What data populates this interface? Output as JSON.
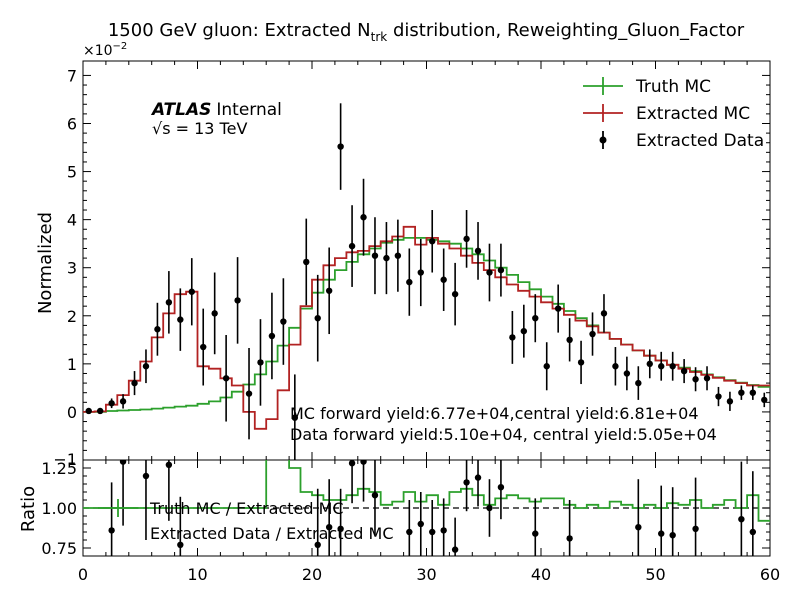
{
  "chart_data": {
    "type": "step-line-with-errorbars",
    "title": "1500 GeV gluon: Extracted N",
    "title_sub": "trk",
    "title_suffix": " distribution, Reweighting_Gluon_Factor",
    "ylabel": "Normalized",
    "ratio_ylabel": "Ratio",
    "y_exponent": "×10",
    "y_exponent_power": "−2",
    "atlas_label": "ATLAS",
    "atlas_sublabel": "Internal",
    "energy_label": "√s = 13 TeV",
    "annotation_mc": "MC forward yield:6.77e+04,central yield:6.81e+04",
    "annotation_data": "Data forward yield:5.10e+04, central yield:5.05e+04",
    "xlim": [
      0,
      60
    ],
    "ylim": [
      -1.0,
      7.3
    ],
    "ratio_ylim": [
      0.7,
      1.3
    ],
    "x_ticks": [
      "0",
      "10",
      "20",
      "30",
      "40",
      "50",
      "60"
    ],
    "y_ticks": [
      "0",
      "1",
      "2",
      "3",
      "4",
      "5",
      "6",
      "7"
    ],
    "y_tick_values": [
      0,
      1,
      2,
      3,
      4,
      5,
      6,
      7
    ],
    "y_tick_extra": "−1",
    "ratio_ticks": [
      "0.75",
      "1.00",
      "1.25"
    ],
    "ratio_tick_values": [
      0.75,
      1.0,
      1.25
    ],
    "legend": [
      {
        "label": "Truth MC",
        "color": "#2ca02c"
      },
      {
        "label": "Extracted MC",
        "color": "#b22222"
      },
      {
        "label": "Extracted Data",
        "color": "#000000"
      }
    ],
    "ratio_legend": [
      {
        "label": "Truth MC / Extracted MC",
        "color": "#2ca02c"
      },
      {
        "label": "Extracted Data / Extracted MC",
        "color": "#000000"
      }
    ],
    "truth_mc": [
      0.0,
      0.0,
      0.02,
      0.03,
      0.04,
      0.05,
      0.07,
      0.09,
      0.11,
      0.13,
      0.17,
      0.22,
      0.3,
      0.42,
      0.57,
      0.78,
      1.05,
      1.38,
      1.75,
      2.15,
      2.48,
      2.75,
      2.95,
      3.12,
      3.28,
      3.4,
      3.52,
      3.58,
      3.62,
      3.62,
      3.58,
      3.55,
      3.5,
      3.4,
      3.28,
      3.15,
      3.0,
      2.85,
      2.7,
      2.55,
      2.4,
      2.25,
      2.1,
      1.95,
      1.8,
      1.65,
      1.52,
      1.4,
      1.28,
      1.17,
      1.07,
      0.98,
      0.92,
      0.85,
      0.78,
      0.72,
      0.66,
      0.61,
      0.56,
      0.52
    ],
    "extracted_mc": [
      0.0,
      0.01,
      0.15,
      0.35,
      0.65,
      1.05,
      1.55,
      2.05,
      2.45,
      2.5,
      0.95,
      0.9,
      0.7,
      0.55,
      0.0,
      -0.35,
      -0.15,
      0.45,
      1.4,
      2.2,
      2.75,
      3.05,
      3.2,
      3.32,
      3.35,
      3.45,
      3.55,
      3.65,
      3.85,
      3.48,
      3.62,
      3.5,
      3.4,
      3.25,
      3.1,
      2.95,
      2.8,
      2.65,
      2.52,
      2.4,
      2.28,
      2.15,
      2.02,
      1.9,
      1.78,
      1.65,
      1.52,
      1.4,
      1.28,
      1.17,
      1.07,
      0.98,
      0.9,
      0.83,
      0.77,
      0.71,
      0.65,
      0.6,
      0.55,
      0.55
    ],
    "data_x": [
      0.5,
      1.5,
      2.5,
      3.5,
      4.5,
      5.5,
      6.5,
      7.5,
      8.5,
      9.5,
      10.5,
      11.5,
      12.5,
      13.5,
      14.5,
      15.5,
      16.5,
      17.5,
      18.5,
      19.5,
      20.5,
      21.5,
      22.5,
      23.5,
      24.5,
      25.5,
      26.5,
      27.5,
      28.5,
      29.5,
      30.5,
      31.5,
      32.5,
      33.5,
      34.5,
      35.5,
      36.5,
      37.5,
      38.5,
      39.5,
      40.5,
      41.5,
      42.5,
      43.5,
      44.5,
      45.5,
      46.5,
      47.5,
      48.5,
      49.5,
      50.5,
      51.5,
      52.5,
      53.5,
      54.5,
      55.5,
      56.5,
      57.5,
      58.5,
      59.5
    ],
    "data_y": [
      0.02,
      0.02,
      0.18,
      0.22,
      0.6,
      0.95,
      1.72,
      2.28,
      1.92,
      2.5,
      1.35,
      2.05,
      0.7,
      2.32,
      0.38,
      1.03,
      1.58,
      1.88,
      -0.12,
      3.12,
      1.95,
      2.52,
      5.52,
      3.45,
      4.05,
      3.25,
      3.2,
      3.25,
      2.7,
      2.9,
      3.55,
      2.75,
      2.45,
      3.6,
      3.35,
      2.9,
      2.95,
      1.55,
      1.68,
      1.95,
      0.95,
      2.15,
      1.5,
      1.03,
      1.62,
      2.05,
      0.95,
      0.8,
      0.6,
      1.0,
      0.95,
      0.95,
      0.85,
      0.68,
      0.7,
      0.32,
      0.22,
      0.4,
      0.4,
      0.25
    ],
    "data_err": [
      0.05,
      0.05,
      0.1,
      0.15,
      0.25,
      0.35,
      0.55,
      0.65,
      0.65,
      0.7,
      0.8,
      0.85,
      0.9,
      0.9,
      0.95,
      0.9,
      0.9,
      0.9,
      0.9,
      0.9,
      0.9,
      0.9,
      0.9,
      0.85,
      0.8,
      0.8,
      0.75,
      0.75,
      0.7,
      0.7,
      0.65,
      0.65,
      0.65,
      0.6,
      0.6,
      0.6,
      0.55,
      0.55,
      0.55,
      0.5,
      0.5,
      0.5,
      0.45,
      0.45,
      0.45,
      0.4,
      0.4,
      0.35,
      0.35,
      0.3,
      0.3,
      0.3,
      0.25,
      0.25,
      0.25,
      0.2,
      0.2,
      0.15,
      0.15,
      0.15
    ],
    "ratio_truth": [
      1.0,
      1.0,
      1.0,
      1.0,
      1.0,
      1.0,
      1.0,
      1.0,
      1.0,
      1.0,
      1.0,
      1.0,
      1.0,
      1.0,
      1.0,
      1.0,
      1.5,
      1.5,
      1.25,
      1.1,
      1.08,
      1.05,
      1.05,
      1.08,
      1.12,
      1.1,
      1.02,
      1.04,
      1.1,
      1.04,
      1.08,
      1.02,
      1.1,
      1.12,
      1.08,
      1.02,
      1.06,
      1.08,
      1.06,
      1.04,
      1.06,
      1.06,
      1.02,
      1.0,
      1.02,
      1.0,
      1.04,
      1.02,
      1.0,
      1.02,
      1.0,
      1.03,
      1.02,
      1.05,
      1.0,
      1.02,
      1.05,
      1.0,
      1.08,
      0.92
    ],
    "ratio_data": [
      null,
      null,
      0.86,
      1.29,
      null,
      1.2,
      null,
      1.27,
      0.77,
      null,
      null,
      null,
      null,
      null,
      null,
      null,
      null,
      null,
      null,
      null,
      0.77,
      0.88,
      0.87,
      1.28,
      1.29,
      1.08,
      null,
      null,
      0.85,
      0.9,
      0.85,
      0.86,
      0.74,
      1.16,
      1.19,
      1.0,
      1.13,
      null,
      null,
      0.84,
      null,
      null,
      0.81,
      null,
      null,
      null,
      null,
      null,
      0.88,
      null,
      0.84,
      0.83,
      null,
      0.87,
      null,
      null,
      null,
      0.93,
      0.85,
      null
    ],
    "ratio_err": [
      0.0,
      0.0,
      0.3,
      0.4,
      0.4,
      0.4,
      0.35,
      0.35,
      0.3,
      0.3,
      0.5,
      0.5,
      0.6,
      0.6,
      0.8,
      0.8,
      0.6,
      0.5,
      0.5,
      0.35,
      0.35,
      0.3,
      0.25,
      0.25,
      0.25,
      0.25,
      0.22,
      0.22,
      0.2,
      0.2,
      0.2,
      0.2,
      0.2,
      0.18,
      0.18,
      0.18,
      0.2,
      0.2,
      0.2,
      0.22,
      0.22,
      0.22,
      0.24,
      0.24,
      0.26,
      0.26,
      0.28,
      0.28,
      0.3,
      0.3,
      0.3,
      0.3,
      0.32,
      0.32,
      0.34,
      0.34,
      0.36,
      0.36,
      0.38,
      0.38
    ]
  }
}
